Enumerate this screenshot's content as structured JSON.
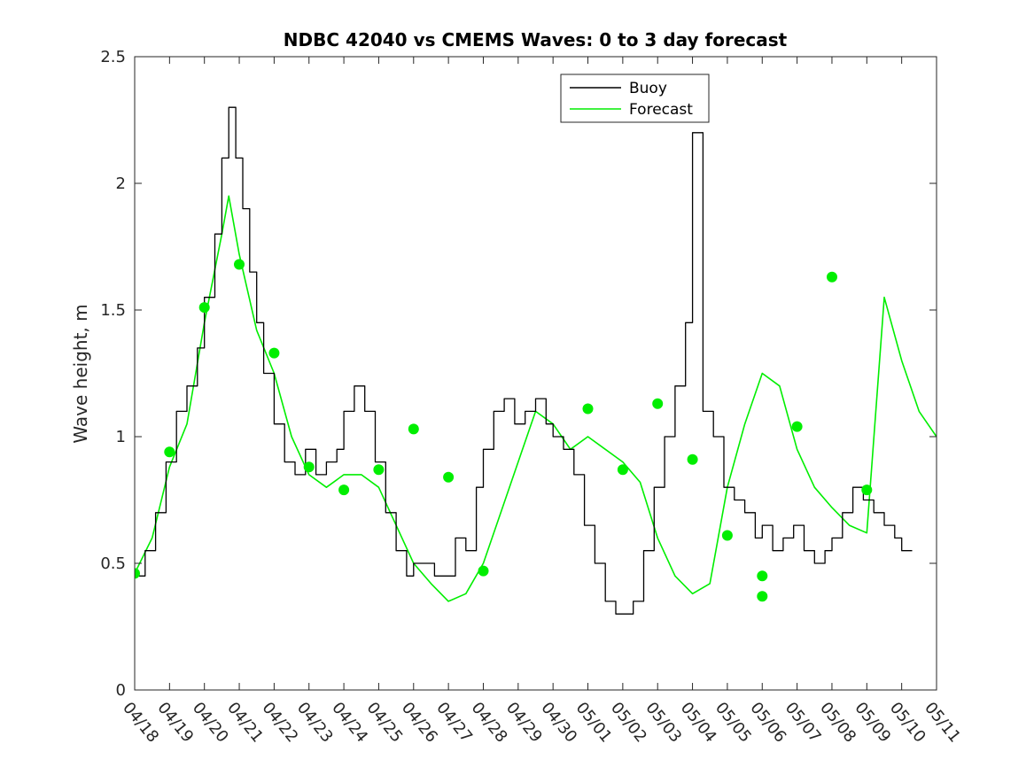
{
  "chart_data": {
    "type": "line",
    "title": "NDBC 42040 vs CMEMS Waves: 0 to 3 day forecast",
    "xlabel": "",
    "ylabel": "Wave height, m",
    "ylim": [
      0,
      2.5
    ],
    "yticks": [
      "0",
      "0.5",
      "1",
      "1.5",
      "2",
      "2.5"
    ],
    "xlim": [
      "04/18",
      "05/11"
    ],
    "categories": [
      "04/18",
      "04/19",
      "04/20",
      "04/21",
      "04/22",
      "04/23",
      "04/24",
      "04/25",
      "04/26",
      "04/27",
      "04/28",
      "04/29",
      "04/30",
      "05/01",
      "05/02",
      "05/03",
      "05/04",
      "05/05",
      "05/06",
      "05/07",
      "05/08",
      "05/09",
      "05/10",
      "05/11"
    ],
    "grid": false,
    "legend": {
      "position": "top-right",
      "entries": [
        "Buoy",
        "Forecast"
      ]
    },
    "colors": {
      "buoy": "#000000",
      "forecast": "#00ee00"
    },
    "series": [
      {
        "name": "Buoy",
        "x": [
          0,
          0.3,
          0.6,
          0.9,
          1.2,
          1.5,
          1.8,
          2.0,
          2.3,
          2.5,
          2.7,
          2.9,
          3.1,
          3.3,
          3.5,
          3.7,
          4.0,
          4.3,
          4.6,
          4.9,
          5.2,
          5.5,
          5.8,
          6.0,
          6.3,
          6.6,
          6.9,
          7.2,
          7.5,
          7.8,
          8.0,
          8.3,
          8.6,
          8.9,
          9.2,
          9.5,
          9.8,
          10.0,
          10.3,
          10.6,
          10.9,
          11.2,
          11.5,
          11.8,
          12.0,
          12.3,
          12.6,
          12.9,
          13.2,
          13.5,
          13.8,
          14.0,
          14.3,
          14.6,
          14.9,
          15.2,
          15.5,
          15.8,
          16.0,
          16.3,
          16.6,
          16.9,
          17.2,
          17.5,
          17.8,
          18.0,
          18.3,
          18.6,
          18.9,
          19.2,
          19.5,
          19.8,
          20.0,
          20.3,
          20.6,
          20.9,
          21.2,
          21.5,
          21.8,
          22.0,
          22.3
        ],
        "values": [
          0.45,
          0.55,
          0.7,
          0.9,
          1.1,
          1.2,
          1.35,
          1.55,
          1.8,
          2.1,
          2.3,
          2.1,
          1.9,
          1.65,
          1.45,
          1.25,
          1.05,
          0.9,
          0.85,
          0.95,
          0.85,
          0.9,
          0.95,
          1.1,
          1.2,
          1.1,
          0.9,
          0.7,
          0.55,
          0.45,
          0.5,
          0.5,
          0.45,
          0.45,
          0.6,
          0.55,
          0.8,
          0.95,
          1.1,
          1.15,
          1.05,
          1.1,
          1.15,
          1.05,
          1.0,
          0.95,
          0.85,
          0.65,
          0.5,
          0.35,
          0.3,
          0.3,
          0.35,
          0.55,
          0.8,
          1.0,
          1.2,
          1.45,
          2.2,
          1.1,
          1.0,
          0.8,
          0.75,
          0.7,
          0.6,
          0.65,
          0.55,
          0.6,
          0.65,
          0.55,
          0.5,
          0.55,
          0.6,
          0.7,
          0.8,
          0.75,
          0.7,
          0.65,
          0.6,
          0.55,
          0.55
        ]
      },
      {
        "name": "Forecast",
        "x": [
          0,
          0.5,
          1.0,
          1.5,
          2.0,
          2.5,
          2.7,
          3.0,
          3.5,
          4.0,
          4.5,
          5.0,
          5.5,
          6.0,
          6.5,
          7.0,
          7.5,
          8.0,
          8.5,
          9.0,
          9.5,
          10.0,
          10.5,
          11.0,
          11.5,
          12.0,
          12.5,
          13.0,
          13.5,
          14.0,
          14.5,
          15.0,
          15.5,
          16.0,
          16.5,
          17.0,
          17.5,
          18.0,
          18.5,
          19.0,
          19.5,
          20.0,
          20.5,
          21.0,
          21.5,
          22.0,
          22.5,
          23.0
        ],
        "values": [
          0.46,
          0.6,
          0.88,
          1.05,
          1.45,
          1.8,
          1.95,
          1.72,
          1.42,
          1.25,
          1.0,
          0.85,
          0.8,
          0.85,
          0.85,
          0.8,
          0.65,
          0.5,
          0.42,
          0.35,
          0.38,
          0.5,
          0.7,
          0.9,
          1.1,
          1.05,
          0.95,
          1.0,
          0.95,
          0.9,
          0.82,
          0.6,
          0.45,
          0.38,
          0.42,
          0.8,
          1.05,
          1.25,
          1.2,
          0.95,
          0.8,
          0.72,
          0.65,
          0.62,
          1.55,
          1.3,
          1.1,
          1.0
        ]
      }
    ],
    "forecast_markers": {
      "x": [
        0,
        1,
        2,
        3,
        4,
        5,
        6,
        7,
        8,
        9,
        10,
        13,
        14,
        15,
        16,
        17,
        18,
        18,
        19,
        20,
        21
      ],
      "values": [
        0.46,
        0.94,
        1.51,
        1.68,
        1.33,
        0.88,
        0.79,
        0.87,
        1.03,
        0.84,
        0.47,
        1.11,
        0.87,
        1.13,
        0.91,
        0.61,
        0.45,
        0.37,
        1.04,
        1.63,
        0.79
      ]
    }
  }
}
